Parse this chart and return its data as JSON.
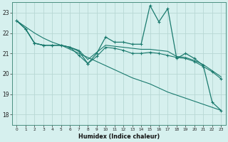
{
  "xlabel": "Humidex (Indice chaleur)",
  "background_color": "#d6f0ee",
  "grid_color": "#b8d8d4",
  "line_color": "#1a7a6e",
  "x_ticks": [
    0,
    1,
    2,
    3,
    4,
    5,
    6,
    7,
    8,
    9,
    10,
    11,
    12,
    13,
    14,
    15,
    16,
    17,
    18,
    19,
    20,
    21,
    22,
    23
  ],
  "y_ticks": [
    18,
    19,
    20,
    21,
    22,
    23
  ],
  "xlim": [
    -0.5,
    23.5
  ],
  "ylim": [
    17.5,
    23.5
  ],
  "series": {
    "line1_with_markers": [
      22.6,
      22.2,
      21.5,
      21.4,
      21.4,
      21.4,
      21.3,
      21.1,
      20.5,
      21.0,
      21.8,
      21.55,
      21.55,
      21.45,
      21.45,
      23.35,
      22.55,
      23.2,
      20.75,
      21.0,
      20.75,
      20.4,
      18.6,
      18.2
    ],
    "line2_straight_decline": [
      22.6,
      22.3,
      22.0,
      21.75,
      21.55,
      21.4,
      21.2,
      21.0,
      20.8,
      20.6,
      20.4,
      20.2,
      20.0,
      19.8,
      19.65,
      19.5,
      19.3,
      19.1,
      18.95,
      18.8,
      18.65,
      18.5,
      18.35,
      18.2
    ],
    "line3_middle": [
      22.6,
      22.2,
      21.5,
      21.4,
      21.4,
      21.4,
      21.3,
      21.15,
      20.7,
      21.05,
      21.4,
      21.35,
      21.3,
      21.25,
      21.2,
      21.2,
      21.15,
      21.1,
      20.85,
      20.8,
      20.65,
      20.45,
      20.15,
      19.85
    ],
    "line4_with_dip_markers": [
      22.6,
      22.2,
      21.5,
      21.4,
      21.4,
      21.4,
      21.3,
      20.9,
      20.5,
      20.85,
      21.3,
      21.25,
      21.15,
      21.0,
      21.0,
      21.05,
      21.0,
      20.9,
      20.8,
      20.75,
      20.6,
      20.35,
      20.1,
      19.75
    ]
  }
}
